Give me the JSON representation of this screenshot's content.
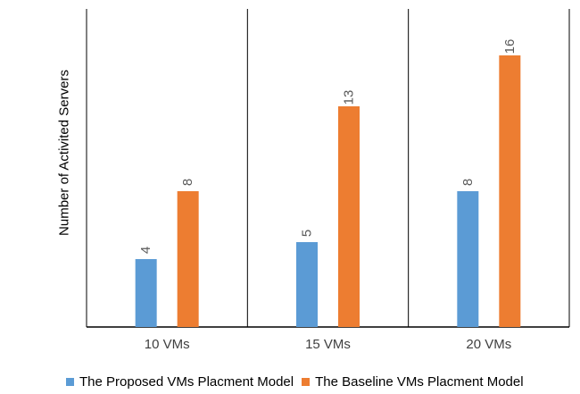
{
  "chart_data": {
    "type": "bar",
    "title": "",
    "xlabel": "",
    "ylabel": "Number of Activited Servers",
    "categories": [
      "10  VMs",
      "15  VMs",
      "20  VMs"
    ],
    "series": [
      {
        "name": "The Proposed VMs Placment Model",
        "values": [
          4,
          5,
          8
        ],
        "color": "#5b9bd5"
      },
      {
        "name": "The Baseline VMs Placment Model",
        "values": [
          8,
          13,
          16
        ],
        "color": "#ed7d31"
      }
    ],
    "ylim": [
      0,
      18
    ],
    "grid": false,
    "data_labels": true,
    "legend_position": "bottom"
  }
}
